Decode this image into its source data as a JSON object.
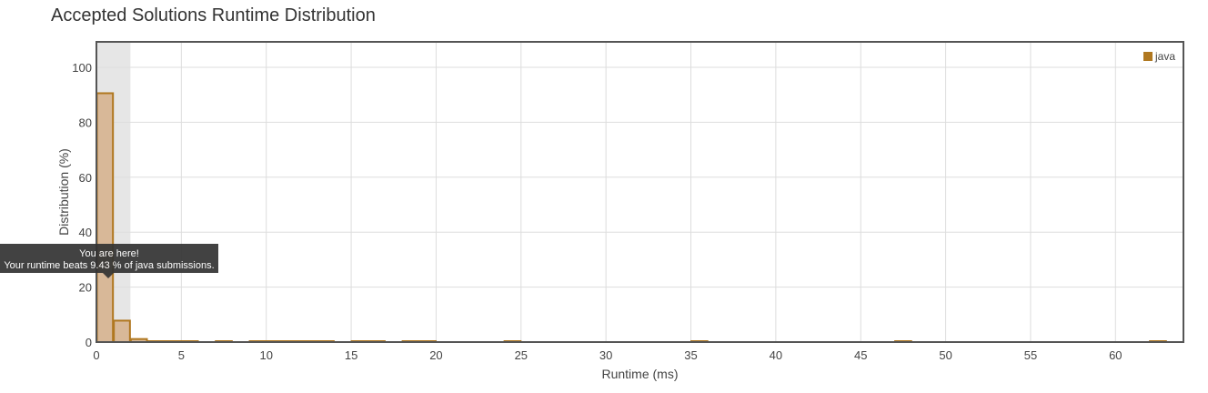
{
  "page": {
    "title": "Accepted Solutions Runtime Distribution"
  },
  "tooltip": {
    "line1": "You are here!",
    "line2": "Your runtime beats 9.43 % of java submissions."
  },
  "colors": {
    "bar_fill": "#D8B898",
    "bar_stroke": "#B07820",
    "highlight_band": "#E6E6E6",
    "grid": "#DDDDDD",
    "frame": "#555555",
    "legend_swatch": "#B07820"
  },
  "chart_data": {
    "type": "bar",
    "title": "Accepted Solutions Runtime Distribution",
    "xlabel": "Runtime (ms)",
    "ylabel": "Distribution (%)",
    "xlim": [
      0,
      64
    ],
    "ylim": [
      0,
      100
    ],
    "xticks": [
      0,
      5,
      10,
      15,
      20,
      25,
      30,
      35,
      40,
      45,
      50,
      55,
      60
    ],
    "yticks": [
      0,
      20,
      40,
      60,
      80,
      100
    ],
    "grid": true,
    "legend_position": "top-right",
    "highlight_range": [
      0,
      2
    ],
    "series": [
      {
        "name": "java",
        "bins": [
          {
            "x0": 0,
            "x1": 1,
            "y": 90.57
          },
          {
            "x0": 1,
            "x1": 2,
            "y": 7.8
          },
          {
            "x0": 2,
            "x1": 3,
            "y": 1.1
          },
          {
            "x0": 3,
            "x1": 4,
            "y": 0.3
          },
          {
            "x0": 4,
            "x1": 5,
            "y": 0.25
          },
          {
            "x0": 5,
            "x1": 6,
            "y": 0.2
          },
          {
            "x0": 7,
            "x1": 8,
            "y": 0.15
          },
          {
            "x0": 9,
            "x1": 10,
            "y": 0.15
          },
          {
            "x0": 10,
            "x1": 11,
            "y": 0.15
          },
          {
            "x0": 11,
            "x1": 12,
            "y": 0.15
          },
          {
            "x0": 12,
            "x1": 13,
            "y": 0.2
          },
          {
            "x0": 13,
            "x1": 14,
            "y": 0.2
          },
          {
            "x0": 15,
            "x1": 16,
            "y": 0.2
          },
          {
            "x0": 16,
            "x1": 17,
            "y": 0.15
          },
          {
            "x0": 18,
            "x1": 19,
            "y": 0.2
          },
          {
            "x0": 19,
            "x1": 20,
            "y": 0.15
          },
          {
            "x0": 24,
            "x1": 25,
            "y": 0.15
          },
          {
            "x0": 35,
            "x1": 36,
            "y": 0.15
          },
          {
            "x0": 47,
            "x1": 48,
            "y": 0.15
          },
          {
            "x0": 62,
            "x1": 63,
            "y": 0.15
          }
        ]
      }
    ]
  }
}
